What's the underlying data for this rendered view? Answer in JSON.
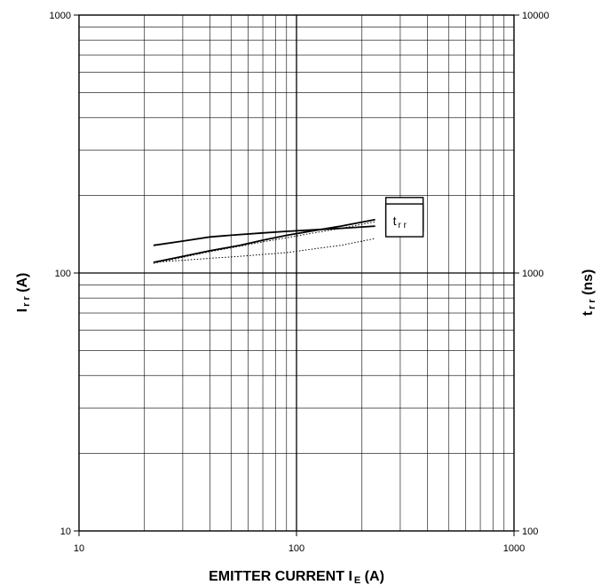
{
  "chart_data": {
    "type": "line",
    "xscale": "log",
    "yscale": "log",
    "y2scale": "log",
    "xlim": [
      10,
      1000
    ],
    "ylim": [
      10,
      1000
    ],
    "y2lim": [
      100,
      10000
    ],
    "grid": true,
    "xticks": [
      "10",
      "100",
      "1000"
    ],
    "yticks": [
      "10",
      "100",
      "1000"
    ],
    "y2ticks": [
      "100",
      "1000",
      "10000"
    ],
    "xlabel": {
      "main": "EMITTER CURRENT",
      "sym": "I",
      "sub": "E",
      "unit": "(A)"
    },
    "ylabel": {
      "sym": "I",
      "sub": "rr",
      "unit": "(A)"
    },
    "y2label": {
      "sym": "t",
      "sub": "rr",
      "unit": "(ns)"
    },
    "series": [
      {
        "name": "Irr",
        "label_sym": "I",
        "label_sub": "rr",
        "axis": "left",
        "style": "solid",
        "color": "#000000",
        "x": [
          22,
          30,
          40,
          55,
          70,
          90,
          120,
          160,
          230
        ],
        "y": [
          110,
          116,
          122,
          128,
          134,
          140,
          146,
          152,
          161
        ]
      },
      {
        "name": "Irr",
        "axis": "left",
        "style": "dotted",
        "color": "#000000",
        "x": [
          22,
          30,
          40,
          55,
          70,
          90,
          120,
          160,
          230
        ],
        "y": [
          109,
          115,
          121,
          127,
          132,
          137,
          143,
          149,
          158
        ]
      },
      {
        "name": "trr",
        "label_sym": "t",
        "label_sub": "rr",
        "axis": "right",
        "style": "solid",
        "color": "#000000",
        "x": [
          22,
          30,
          40,
          55,
          70,
          90,
          120,
          160,
          230
        ],
        "y": [
          1280,
          1330,
          1380,
          1410,
          1430,
          1450,
          1470,
          1490,
          1520
        ]
      },
      {
        "name": "trr",
        "axis": "right",
        "style": "dotted",
        "color": "#000000",
        "x": [
          22,
          30,
          40,
          55,
          70,
          90,
          120,
          160,
          230
        ],
        "y": [
          1100,
          1120,
          1140,
          1160,
          1180,
          1200,
          1240,
          1280,
          1360
        ]
      }
    ]
  }
}
